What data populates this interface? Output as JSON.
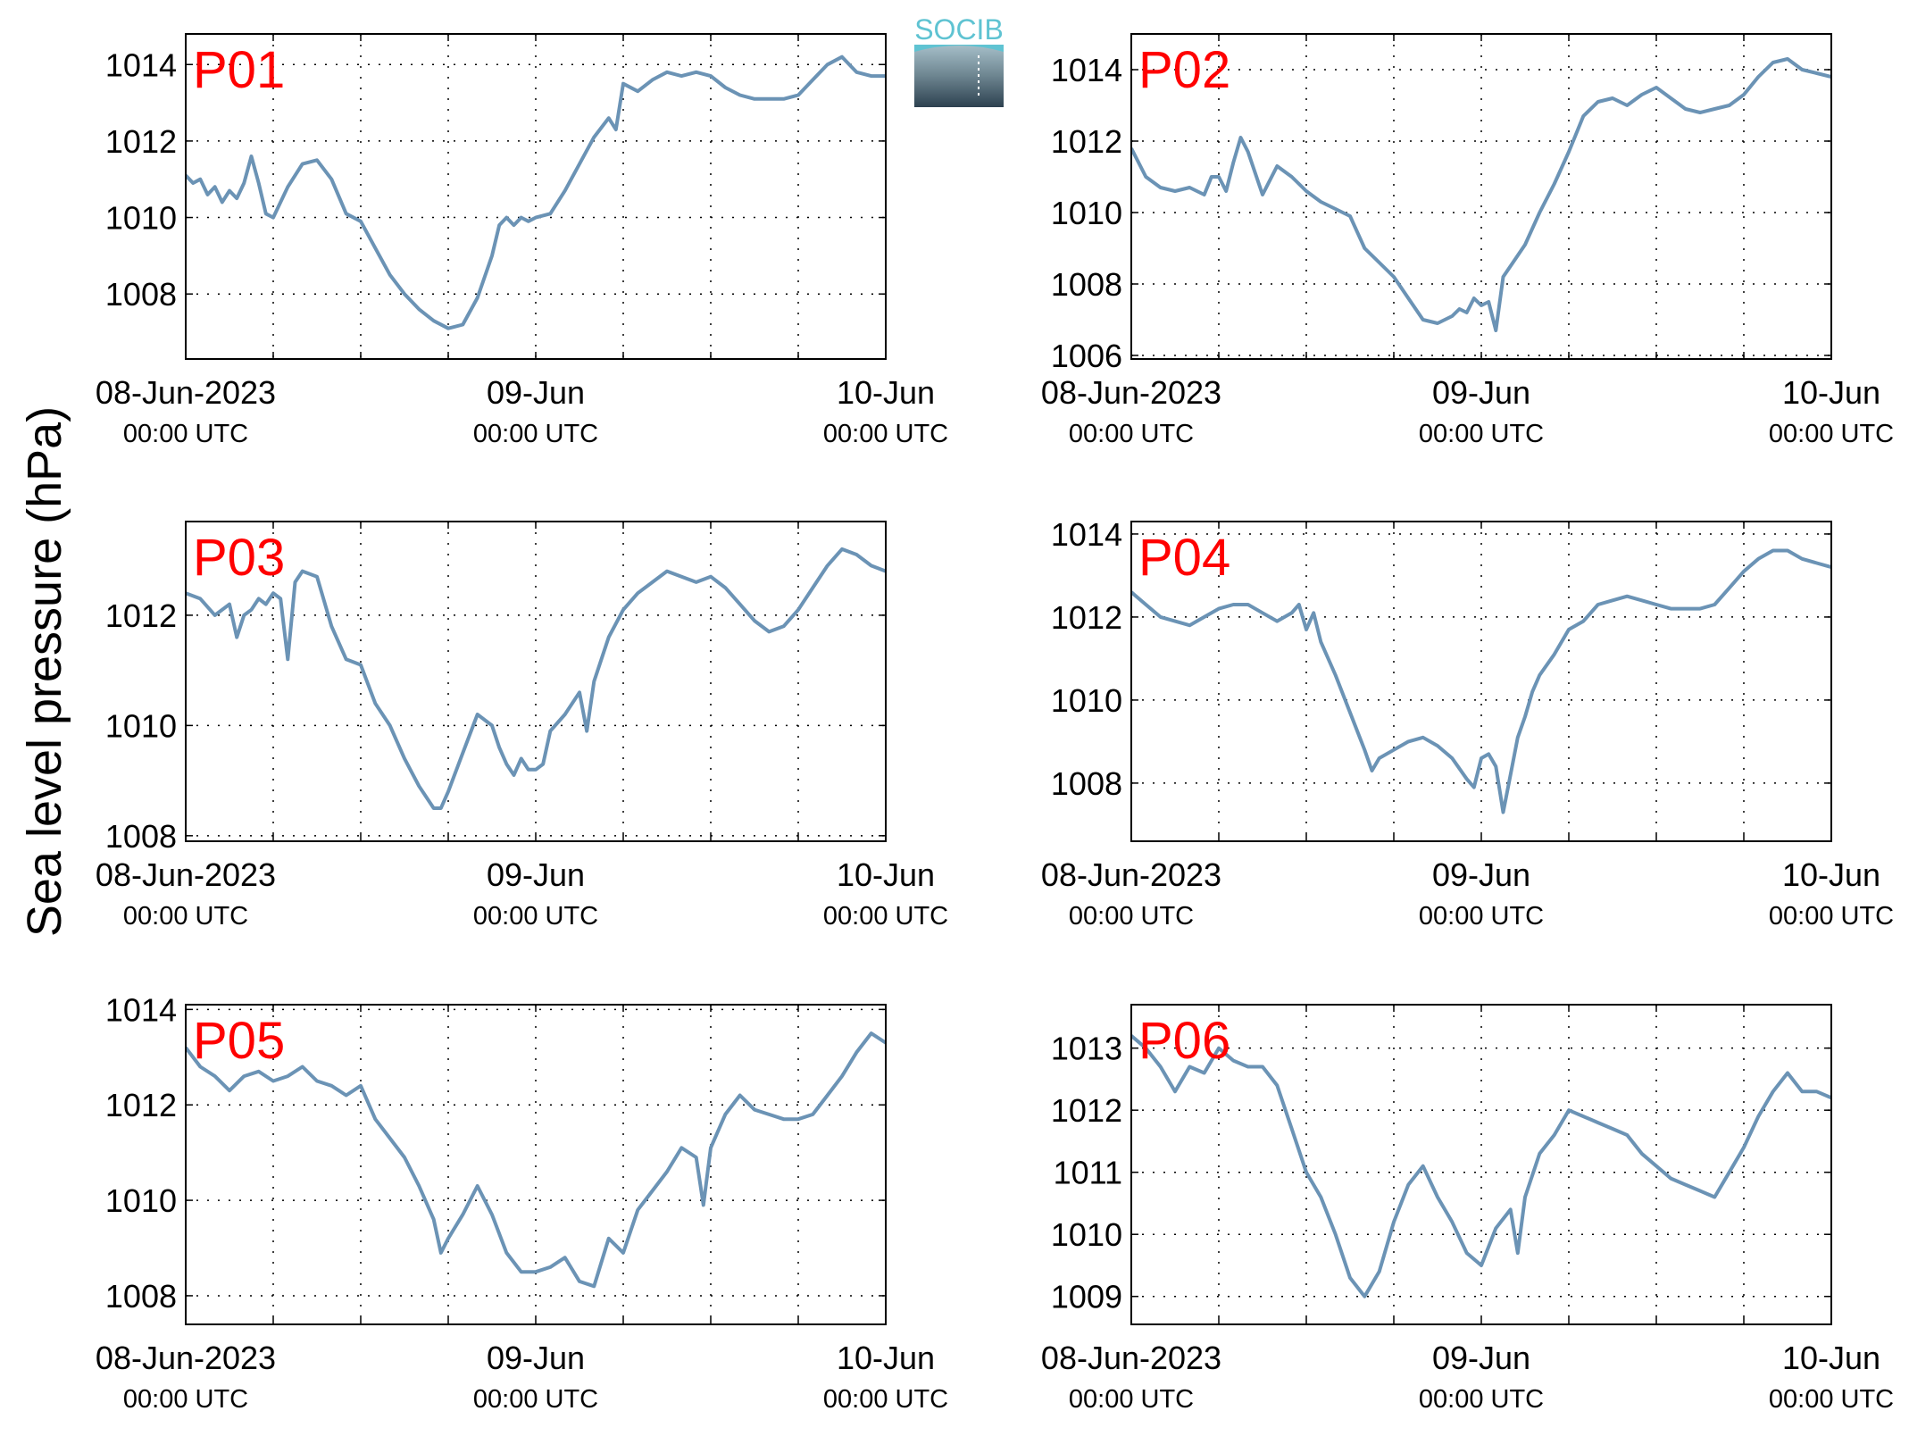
{
  "figure": {
    "ylabel": "Sea level pressure (hPa)",
    "logo_text": "SOCIB",
    "line_color": "#6b93b5",
    "panel_label_color": "#ff0000",
    "grid": true
  },
  "x_ticks": [
    {
      "t": 0,
      "line1": "08-Jun-2023",
      "line2": "00:00 UTC"
    },
    {
      "t": 24,
      "line1": "09-Jun",
      "line2": "00:00 UTC"
    },
    {
      "t": 48,
      "line1": "10-Jun",
      "line2": "00:00 UTC"
    }
  ],
  "x_grid_hours": [
    6,
    12,
    18,
    24,
    30,
    36,
    42
  ],
  "chart_data": [
    {
      "type": "line",
      "label": "P01",
      "xunit": "hours since 08-Jun-2023 00:00 UTC",
      "xlim": [
        0,
        48
      ],
      "ylim": [
        1006.3,
        1014.8
      ],
      "yticks": [
        1008,
        1010,
        1012,
        1014
      ],
      "x": [
        0,
        0.5,
        1,
        1.5,
        2,
        2.5,
        3,
        3.5,
        4,
        4.5,
        5,
        5.5,
        6,
        7,
        8,
        9,
        10,
        11,
        12,
        13,
        14,
        15,
        16,
        17,
        18,
        19,
        20,
        21,
        21.5,
        22,
        22.5,
        23,
        23.5,
        24,
        25,
        26,
        27,
        28,
        29,
        29.5,
        30,
        31,
        32,
        33,
        34,
        35,
        36,
        37,
        38,
        39,
        40,
        41,
        42,
        43,
        44,
        45,
        46,
        47,
        48
      ],
      "y": [
        1011.1,
        1010.9,
        1011.0,
        1010.6,
        1010.8,
        1010.4,
        1010.7,
        1010.5,
        1010.9,
        1011.6,
        1010.9,
        1010.1,
        1010.0,
        1010.8,
        1011.4,
        1011.5,
        1011.0,
        1010.1,
        1009.9,
        1009.2,
        1008.5,
        1008.0,
        1007.6,
        1007.3,
        1007.1,
        1007.2,
        1007.9,
        1009.0,
        1009.8,
        1010.0,
        1009.8,
        1010.0,
        1009.9,
        1010.0,
        1010.1,
        1010.7,
        1011.4,
        1012.1,
        1012.6,
        1012.3,
        1013.5,
        1013.3,
        1013.6,
        1013.8,
        1013.7,
        1013.8,
        1013.7,
        1013.4,
        1013.2,
        1013.1,
        1013.1,
        1013.1,
        1013.2,
        1013.6,
        1014.0,
        1014.2,
        1013.8,
        1013.7,
        1013.7
      ]
    },
    {
      "type": "line",
      "label": "P02",
      "xunit": "hours since 08-Jun-2023 00:00 UTC",
      "xlim": [
        0,
        48
      ],
      "ylim": [
        1005.9,
        1015.0
      ],
      "yticks": [
        1006,
        1008,
        1010,
        1012,
        1014
      ],
      "x": [
        0,
        1,
        2,
        3,
        4,
        5,
        5.5,
        6,
        6.5,
        7,
        7.5,
        8,
        9,
        10,
        11,
        12,
        13,
        14,
        15,
        16,
        17,
        18,
        19,
        20,
        21,
        22,
        22.5,
        23,
        23.5,
        24,
        24.5,
        25,
        25.5,
        26,
        27,
        28,
        29,
        30,
        31,
        32,
        33,
        34,
        35,
        36,
        37,
        38,
        39,
        40,
        41,
        42,
        43,
        44,
        45,
        46,
        47,
        48
      ],
      "y": [
        1011.8,
        1011.0,
        1010.7,
        1010.6,
        1010.7,
        1010.5,
        1011.0,
        1011.0,
        1010.6,
        1011.4,
        1012.1,
        1011.7,
        1010.5,
        1011.3,
        1011.0,
        1010.6,
        1010.3,
        1010.1,
        1009.9,
        1009.0,
        1008.6,
        1008.2,
        1007.6,
        1007.0,
        1006.9,
        1007.1,
        1007.3,
        1007.2,
        1007.6,
        1007.4,
        1007.5,
        1006.7,
        1008.2,
        1008.5,
        1009.1,
        1010.0,
        1010.8,
        1011.7,
        1012.7,
        1013.1,
        1013.2,
        1013.0,
        1013.3,
        1013.5,
        1013.2,
        1012.9,
        1012.8,
        1012.9,
        1013.0,
        1013.3,
        1013.8,
        1014.2,
        1014.3,
        1014.0,
        1013.9,
        1013.8
      ]
    },
    {
      "type": "line",
      "label": "P03",
      "xunit": "hours since 08-Jun-2023 00:00 UTC",
      "xlim": [
        0,
        48
      ],
      "ylim": [
        1007.9,
        1013.7
      ],
      "yticks": [
        1008,
        1010,
        1012
      ],
      "x": [
        0,
        1,
        2,
        3,
        3.5,
        4,
        4.5,
        5,
        5.5,
        6,
        6.5,
        7,
        7.5,
        8,
        9,
        10,
        11,
        12,
        13,
        14,
        15,
        16,
        17,
        17.5,
        18,
        19,
        20,
        21,
        21.5,
        22,
        22.5,
        23,
        23.5,
        24,
        24.5,
        25,
        26,
        27,
        27.5,
        28,
        29,
        30,
        31,
        32,
        33,
        34,
        35,
        36,
        37,
        38,
        39,
        40,
        41,
        42,
        43,
        44,
        45,
        46,
        47,
        48
      ],
      "y": [
        1012.4,
        1012.3,
        1012.0,
        1012.2,
        1011.6,
        1012.0,
        1012.1,
        1012.3,
        1012.2,
        1012.4,
        1012.3,
        1011.2,
        1012.6,
        1012.8,
        1012.7,
        1011.8,
        1011.2,
        1011.1,
        1010.4,
        1010.0,
        1009.4,
        1008.9,
        1008.5,
        1008.5,
        1008.8,
        1009.5,
        1010.2,
        1010.0,
        1009.6,
        1009.3,
        1009.1,
        1009.4,
        1009.2,
        1009.2,
        1009.3,
        1009.9,
        1010.2,
        1010.6,
        1009.9,
        1010.8,
        1011.6,
        1012.1,
        1012.4,
        1012.6,
        1012.8,
        1012.7,
        1012.6,
        1012.7,
        1012.5,
        1012.2,
        1011.9,
        1011.7,
        1011.8,
        1012.1,
        1012.5,
        1012.9,
        1013.2,
        1013.1,
        1012.9,
        1012.8
      ]
    },
    {
      "type": "line",
      "label": "P04",
      "xunit": "hours since 08-Jun-2023 00:00 UTC",
      "xlim": [
        0,
        48
      ],
      "ylim": [
        1006.6,
        1014.3
      ],
      "yticks": [
        1008,
        1010,
        1012,
        1014
      ],
      "x": [
        0,
        1,
        2,
        3,
        4,
        5,
        6,
        7,
        8,
        9,
        10,
        11,
        11.5,
        12,
        12.5,
        13,
        14,
        15,
        16,
        16.5,
        17,
        18,
        19,
        20,
        21,
        22,
        23,
        23.5,
        24,
        24.5,
        25,
        25.5,
        26,
        26.5,
        27,
        27.5,
        28,
        29,
        30,
        31,
        32,
        33,
        34,
        35,
        36,
        37,
        38,
        39,
        40,
        41,
        42,
        43,
        44,
        45,
        46,
        47,
        48
      ],
      "y": [
        1012.6,
        1012.3,
        1012.0,
        1011.9,
        1011.8,
        1012.0,
        1012.2,
        1012.3,
        1012.3,
        1012.1,
        1011.9,
        1012.1,
        1012.3,
        1011.7,
        1012.1,
        1011.4,
        1010.6,
        1009.7,
        1008.8,
        1008.3,
        1008.6,
        1008.8,
        1009.0,
        1009.1,
        1008.9,
        1008.6,
        1008.1,
        1007.9,
        1008.6,
        1008.7,
        1008.4,
        1007.3,
        1008.2,
        1009.1,
        1009.6,
        1010.2,
        1010.6,
        1011.1,
        1011.7,
        1011.9,
        1012.3,
        1012.4,
        1012.5,
        1012.4,
        1012.3,
        1012.2,
        1012.2,
        1012.2,
        1012.3,
        1012.7,
        1013.1,
        1013.4,
        1013.6,
        1013.6,
        1013.4,
        1013.3,
        1013.2
      ]
    },
    {
      "type": "line",
      "label": "P05",
      "xunit": "hours since 08-Jun-2023 00:00 UTC",
      "xlim": [
        0,
        48
      ],
      "ylim": [
        1007.4,
        1014.1
      ],
      "yticks": [
        1008,
        1010,
        1012,
        1014
      ],
      "x": [
        0,
        1,
        2,
        3,
        4,
        5,
        6,
        7,
        8,
        9,
        10,
        11,
        12,
        13,
        14,
        15,
        16,
        17,
        17.5,
        18,
        19,
        20,
        21,
        22,
        23,
        24,
        25,
        26,
        27,
        28,
        28.5,
        29,
        30,
        31,
        32,
        33,
        34,
        35,
        35.5,
        36,
        37,
        38,
        39,
        40,
        41,
        42,
        43,
        44,
        45,
        46,
        47,
        48
      ],
      "y": [
        1013.2,
        1012.8,
        1012.6,
        1012.3,
        1012.6,
        1012.7,
        1012.5,
        1012.6,
        1012.8,
        1012.5,
        1012.4,
        1012.2,
        1012.4,
        1011.7,
        1011.3,
        1010.9,
        1010.3,
        1009.6,
        1008.9,
        1009.2,
        1009.7,
        1010.3,
        1009.7,
        1008.9,
        1008.5,
        1008.5,
        1008.6,
        1008.8,
        1008.3,
        1008.2,
        1008.7,
        1009.2,
        1008.9,
        1009.8,
        1010.2,
        1010.6,
        1011.1,
        1010.9,
        1009.9,
        1011.1,
        1011.8,
        1012.2,
        1011.9,
        1011.8,
        1011.7,
        1011.7,
        1011.8,
        1012.2,
        1012.6,
        1013.1,
        1013.5,
        1013.3
      ]
    },
    {
      "type": "line",
      "label": "P06",
      "xunit": "hours since 08-Jun-2023 00:00 UTC",
      "xlim": [
        0,
        48
      ],
      "ylim": [
        1008.55,
        1013.7
      ],
      "yticks": [
        1009,
        1010,
        1011,
        1012,
        1013
      ],
      "x": [
        0,
        1,
        2,
        3,
        4,
        5,
        6,
        7,
        8,
        9,
        10,
        11,
        12,
        13,
        14,
        15,
        16,
        17,
        18,
        19,
        20,
        21,
        22,
        23,
        24,
        25,
        26,
        26.5,
        27,
        28,
        29,
        30,
        31,
        32,
        33,
        34,
        35,
        36,
        37,
        38,
        39,
        40,
        41,
        42,
        43,
        44,
        45,
        46,
        47,
        48
      ],
      "y": [
        1013.2,
        1013.0,
        1012.7,
        1012.3,
        1012.7,
        1012.6,
        1013.0,
        1012.8,
        1012.7,
        1012.7,
        1012.4,
        1011.7,
        1011.0,
        1010.6,
        1010.0,
        1009.3,
        1009.0,
        1009.4,
        1010.2,
        1010.8,
        1011.1,
        1010.6,
        1010.2,
        1009.7,
        1009.5,
        1010.1,
        1010.4,
        1009.7,
        1010.6,
        1011.3,
        1011.6,
        1012.0,
        1011.9,
        1011.8,
        1011.7,
        1011.6,
        1011.3,
        1011.1,
        1010.9,
        1010.8,
        1010.7,
        1010.6,
        1011.0,
        1011.4,
        1011.9,
        1012.3,
        1012.6,
        1012.3,
        1012.3,
        1012.2
      ]
    }
  ]
}
